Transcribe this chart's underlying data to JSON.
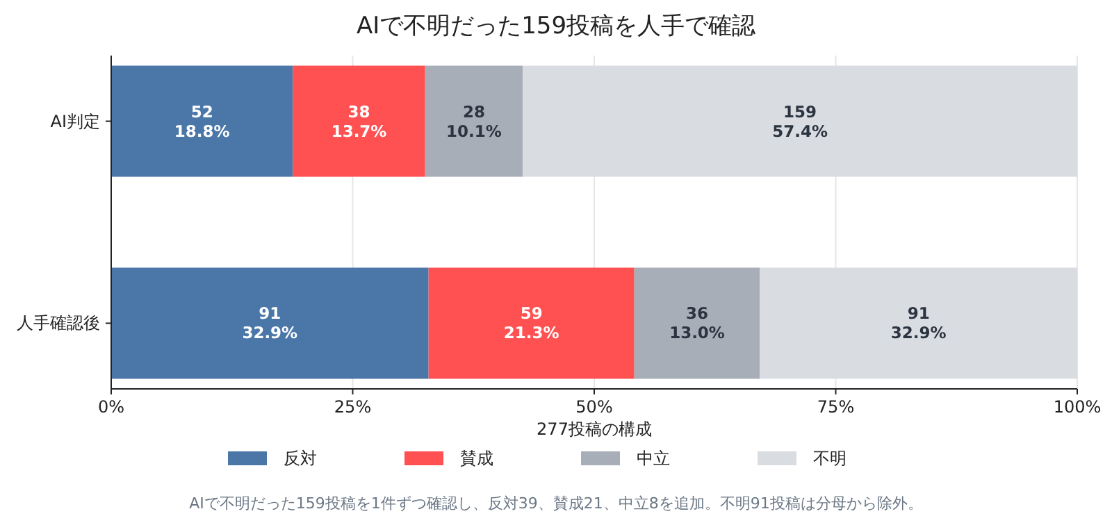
{
  "chart_data": {
    "type": "bar",
    "orientation": "horizontal",
    "stacked": true,
    "title": "AIで不明だった159投稿を人手で確認",
    "xlabel": "277投稿の構成",
    "categories": [
      "AI判定",
      "人手確認後"
    ],
    "series": [
      {
        "name": "反対",
        "color": "#4a76a8",
        "values": [
          18.8,
          32.85
        ],
        "value_labels": [
          "52\n18.8%",
          "91\n32.9%"
        ]
      },
      {
        "name": "賛成",
        "color": "#ff5052",
        "values": [
          13.7,
          21.3
        ],
        "value_labels": [
          "38\n13.7%",
          "59\n21.3%"
        ]
      },
      {
        "name": "中立",
        "color": "#a7aeb8",
        "values": [
          10.1,
          13.0
        ],
        "value_labels": [
          "28\n10.1%",
          "36\n13.0%"
        ]
      },
      {
        "name": "不明",
        "color": "#d9dde2",
        "values": [
          57.4,
          32.85
        ],
        "value_labels": [
          "159\n57.4%",
          "91\n32.9%"
        ]
      }
    ],
    "xlim": [
      0,
      100
    ],
    "xticks": [
      {
        "value": 0,
        "label": "0%"
      },
      {
        "value": 25,
        "label": "25%"
      },
      {
        "value": 50,
        "label": "50%"
      },
      {
        "value": 75,
        "label": "75%"
      },
      {
        "value": 100,
        "label": "100%"
      }
    ],
    "grid": "x",
    "legend": "bottom",
    "annotations": [
      "AIで不明だった159投稿を1件ずつ確認し、反対39、賛成21、中立8を追加。不明91投稿は分母から除外。"
    ]
  }
}
